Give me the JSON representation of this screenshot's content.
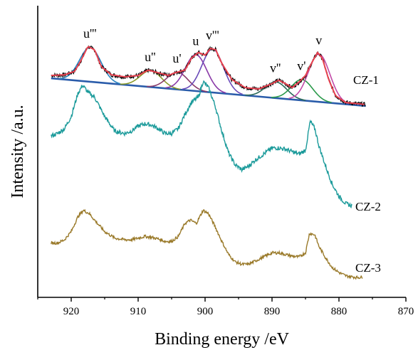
{
  "chart_data": {
    "type": "line",
    "xlabel": "Binding energy /eV",
    "ylabel": "Intensity /a.u.",
    "xlim": [
      925,
      870
    ],
    "x_reversed": true,
    "x_ticks": [
      920,
      910,
      900,
      890,
      880,
      870
    ],
    "y_ticks_shown": false,
    "grid": false,
    "series": [
      {
        "name": "CZ-1",
        "color": "#000000",
        "fit_envelope_color": "#e8414f",
        "background_color": "#2a5caa",
        "points": [
          [
            923,
            0.62
          ],
          [
            921,
            0.63
          ],
          [
            919.5,
            0.68
          ],
          [
            918.5,
            0.85
          ],
          [
            917.5,
            1.05
          ],
          [
            916.5,
            1.0
          ],
          [
            915.5,
            0.75
          ],
          [
            914,
            0.63
          ],
          [
            912,
            0.6
          ],
          [
            910,
            0.62
          ],
          [
            908.5,
            0.7
          ],
          [
            907,
            0.66
          ],
          [
            905.5,
            0.62
          ],
          [
            904.5,
            0.66
          ],
          [
            903,
            0.7
          ],
          [
            902,
            0.88
          ],
          [
            901,
            0.96
          ],
          [
            900,
            0.92
          ],
          [
            899.2,
            1.02
          ],
          [
            898.4,
            1.0
          ],
          [
            897.5,
            0.8
          ],
          [
            896,
            0.56
          ],
          [
            894,
            0.44
          ],
          [
            892,
            0.42
          ],
          [
            890,
            0.5
          ],
          [
            889,
            0.55
          ],
          [
            888,
            0.5
          ],
          [
            887,
            0.44
          ],
          [
            886,
            0.52
          ],
          [
            885,
            0.62
          ],
          [
            884,
            0.82
          ],
          [
            883.2,
            0.96
          ],
          [
            882.5,
            0.88
          ],
          [
            881.5,
            0.55
          ],
          [
            880.5,
            0.32
          ],
          [
            879,
            0.22
          ],
          [
            877,
            0.2
          ],
          [
            876,
            0.19
          ]
        ],
        "components": [
          {
            "label": "u'''",
            "center": 917.2,
            "color": "#2a84c0"
          },
          {
            "label": "u''",
            "center": 908.2,
            "color": "#8a9a2a"
          },
          {
            "label": "u'",
            "center": 904.2,
            "color": "#8a3a6a"
          },
          {
            "label": "u",
            "center": 901.4,
            "color": "#8a3aa8"
          },
          {
            "label": "v'''",
            "center": 898.9,
            "color": "#6a4ab8"
          },
          {
            "label": "v''",
            "center": 889.5,
            "color": "#2a6a5a"
          },
          {
            "label": "v'",
            "center": 885.6,
            "color": "#2a9a4a"
          },
          {
            "label": "v",
            "center": 883.0,
            "color": "#c24aa8"
          }
        ]
      },
      {
        "name": "CZ-2",
        "color": "#1a9a9a",
        "points": [
          [
            923,
            0.7
          ],
          [
            922,
            0.72
          ],
          [
            921,
            0.76
          ],
          [
            920,
            0.86
          ],
          [
            919,
            1.05
          ],
          [
            918.3,
            1.12
          ],
          [
            917.5,
            1.06
          ],
          [
            916.5,
            1.02
          ],
          [
            915,
            0.86
          ],
          [
            913.5,
            0.74
          ],
          [
            912,
            0.72
          ],
          [
            911,
            0.74
          ],
          [
            910,
            0.78
          ],
          [
            909,
            0.8
          ],
          [
            908,
            0.79
          ],
          [
            907,
            0.76
          ],
          [
            906,
            0.72
          ],
          [
            905,
            0.72
          ],
          [
            904,
            0.76
          ],
          [
            903,
            0.88
          ],
          [
            902,
            0.98
          ],
          [
            901,
            1.02
          ],
          [
            900.3,
            1.15
          ],
          [
            899.5,
            1.1
          ],
          [
            898.5,
            0.95
          ],
          [
            897.5,
            0.74
          ],
          [
            896.5,
            0.56
          ],
          [
            895.5,
            0.46
          ],
          [
            894.5,
            0.42
          ],
          [
            893.5,
            0.45
          ],
          [
            892.5,
            0.5
          ],
          [
            891,
            0.56
          ],
          [
            890,
            0.6
          ],
          [
            889,
            0.6
          ],
          [
            888,
            0.59
          ],
          [
            887,
            0.57
          ],
          [
            886,
            0.55
          ],
          [
            885,
            0.58
          ],
          [
            884.3,
            0.82
          ],
          [
            883.6,
            0.76
          ],
          [
            883,
            0.62
          ],
          [
            882,
            0.45
          ],
          [
            881,
            0.3
          ],
          [
            880,
            0.2
          ],
          [
            879,
            0.14
          ],
          [
            878,
            0.12
          ]
        ]
      },
      {
        "name": "CZ-3",
        "color": "#9a7a2a",
        "points": [
          [
            923,
            0.36
          ],
          [
            922,
            0.36
          ],
          [
            921,
            0.4
          ],
          [
            920,
            0.5
          ],
          [
            919,
            0.68
          ],
          [
            918.2,
            0.76
          ],
          [
            917.3,
            0.72
          ],
          [
            916.3,
            0.62
          ],
          [
            915,
            0.5
          ],
          [
            913.5,
            0.42
          ],
          [
            912,
            0.4
          ],
          [
            911,
            0.4
          ],
          [
            910,
            0.42
          ],
          [
            909,
            0.44
          ],
          [
            908,
            0.43
          ],
          [
            907,
            0.41
          ],
          [
            906,
            0.38
          ],
          [
            905,
            0.38
          ],
          [
            904,
            0.44
          ],
          [
            903,
            0.6
          ],
          [
            902.2,
            0.64
          ],
          [
            901.3,
            0.6
          ],
          [
            900.3,
            0.76
          ],
          [
            899.5,
            0.72
          ],
          [
            898.5,
            0.56
          ],
          [
            897.5,
            0.38
          ],
          [
            896.5,
            0.22
          ],
          [
            895.5,
            0.13
          ],
          [
            894.5,
            0.1
          ],
          [
            893.5,
            0.1
          ],
          [
            892.5,
            0.14
          ],
          [
            891,
            0.2
          ],
          [
            890,
            0.24
          ],
          [
            889,
            0.24
          ],
          [
            888,
            0.22
          ],
          [
            887,
            0.2
          ],
          [
            886,
            0.19
          ],
          [
            885,
            0.24
          ],
          [
            884.4,
            0.48
          ],
          [
            883.6,
            0.46
          ],
          [
            883,
            0.32
          ],
          [
            882,
            0.18
          ],
          [
            881,
            0.06
          ],
          [
            880,
            0.0
          ],
          [
            879,
            -0.04
          ],
          [
            877.5,
            -0.06
          ],
          [
            876.5,
            -0.06
          ]
        ]
      }
    ]
  }
}
